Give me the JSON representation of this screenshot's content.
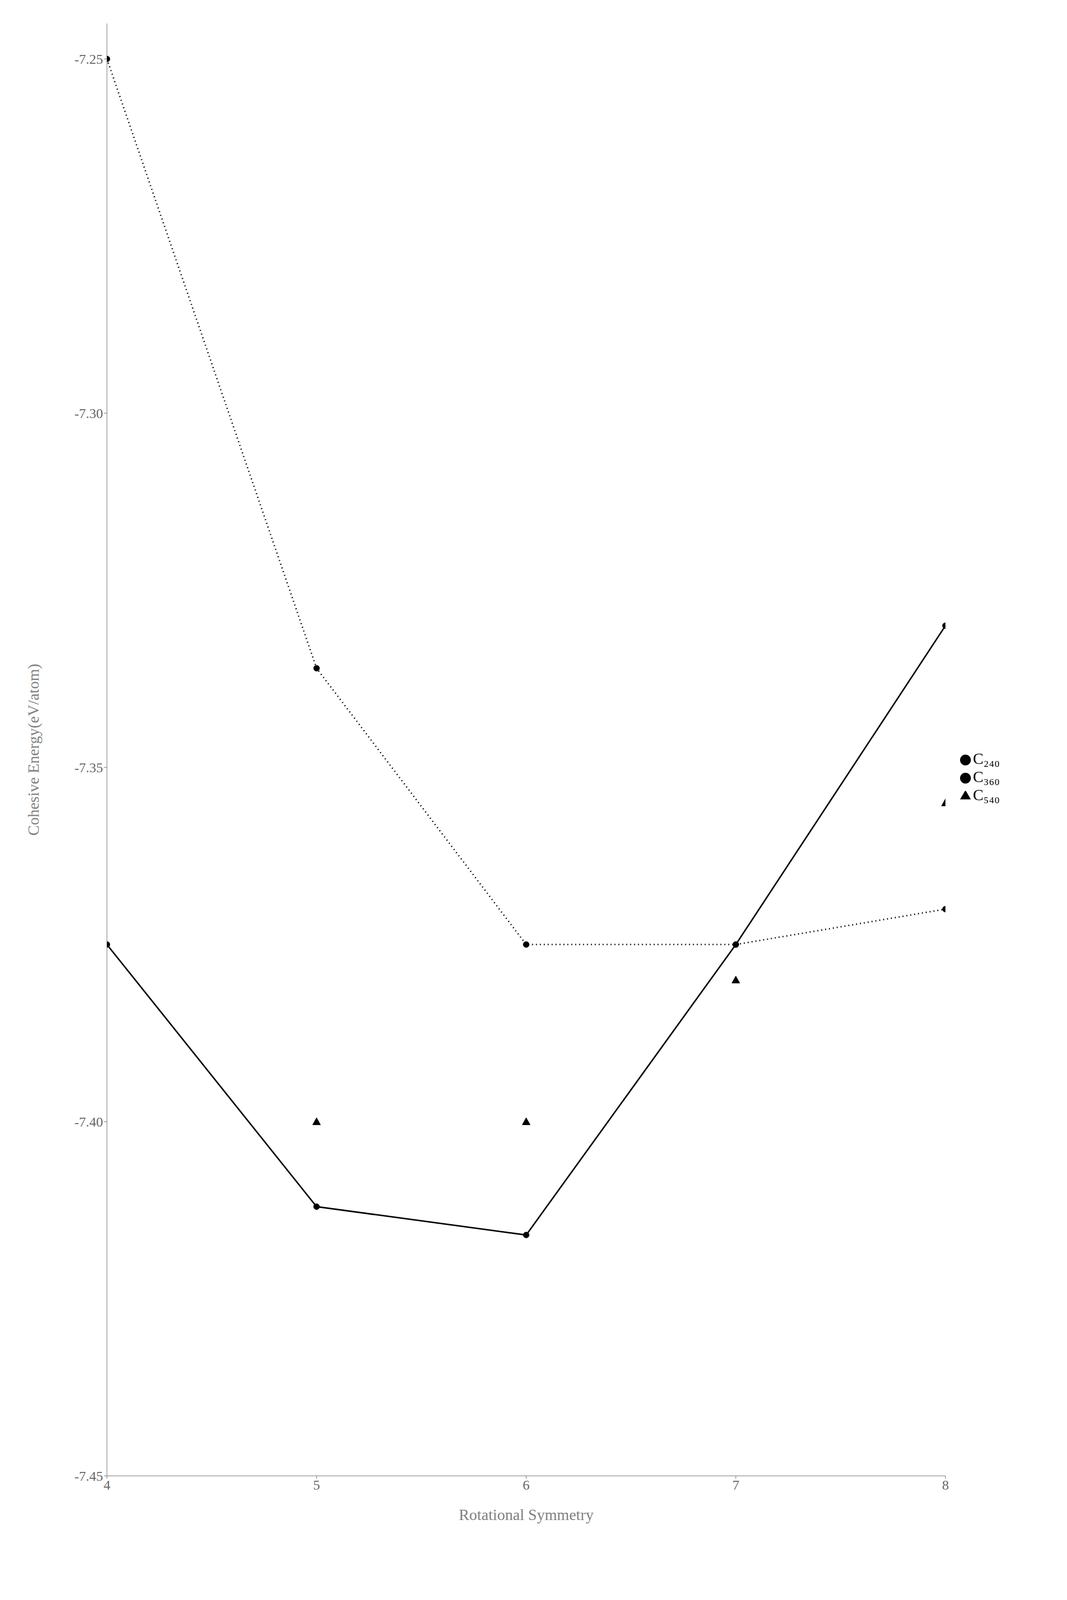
{
  "chart_data": {
    "type": "line",
    "xlabel": "Rotational Symmetry",
    "ylabel": "Cohesive Energy(eV/atom)",
    "xlim": [
      4,
      8
    ],
    "xticks": [
      4,
      5,
      6,
      7,
      8
    ],
    "ylim": [
      -7.45,
      -7.245
    ],
    "yticks": [
      -7.25,
      {
        "value": -7.3,
        "label": "-7.30"
      },
      -7.35,
      {
        "value": -7.4,
        "label": "-7.40"
      },
      -7.45
    ],
    "grid": false,
    "legend": "right",
    "series": [
      {
        "name": "C₃₆₀",
        "color": "#000000",
        "x": [
          4,
          5,
          6,
          7,
          8
        ],
        "values": [
          -7.375,
          -7.412,
          -7.416,
          -7.375,
          -7.33
        ],
        "marker": "circle",
        "line_style": "solid"
      },
      {
        "name": "C₂₄₀",
        "color": "#000000",
        "x": [
          4,
          5,
          6,
          7,
          8
        ],
        "values": [
          -7.25,
          -7.336,
          -7.375,
          -7.375,
          -7.37
        ],
        "marker": "circle",
        "line_style": "dotted"
      },
      {
        "name": "C₅₄₀",
        "color": "#000000",
        "x": [
          5,
          6,
          7,
          8
        ],
        "values": [
          -7.4,
          -7.4,
          -7.38,
          -7.355
        ],
        "marker": "triangle",
        "line_style": "none"
      }
    ]
  }
}
